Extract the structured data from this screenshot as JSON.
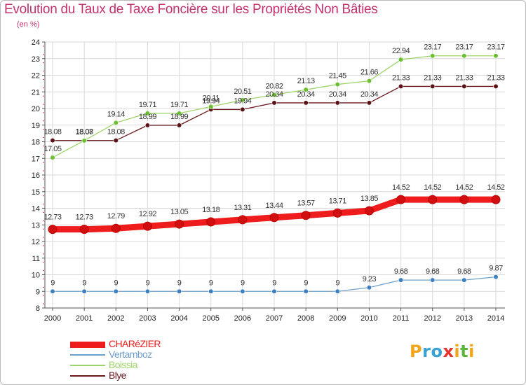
{
  "title": "Evolution du Taux de Taxe Foncière sur les Propriétés Non Bâties",
  "unit_label": "(en %)",
  "logo": {
    "text": "Proxiti",
    "letters": [
      "P",
      "r",
      "o",
      "x",
      "i",
      "t",
      "i"
    ]
  },
  "chart_data": {
    "type": "line",
    "x": [
      "2000",
      "2001",
      "2002",
      "2003",
      "2004",
      "2005",
      "2006",
      "2007",
      "2008",
      "2009",
      "2010",
      "2011",
      "2012",
      "2013",
      "2014"
    ],
    "ylim": [
      8,
      24
    ],
    "yticks": [
      "8",
      "9",
      "10",
      "11",
      "12",
      "13",
      "14",
      "15",
      "16",
      "17",
      "18",
      "19",
      "20",
      "21",
      "22",
      "23",
      "24"
    ],
    "grid": true,
    "legend_position": "bottom-left",
    "series": [
      {
        "name": "Blye",
        "color": "#6b1a1f",
        "marker_color": "#5a1418",
        "width": 1.3,
        "values": [
          18.08,
          18.08,
          18.08,
          18.99,
          18.99,
          19.94,
          19.94,
          20.34,
          20.34,
          20.34,
          20.34,
          21.33,
          21.33,
          21.33,
          21.33
        ],
        "labels": [
          "18.08",
          "18.08",
          "18.08",
          "18.99",
          "18.99",
          "19.94",
          "19.94",
          "20.34",
          "20.34",
          "20.34",
          "20.34",
          "21.33",
          "21.33",
          "21.33",
          "21.33"
        ]
      },
      {
        "name": "Boissia",
        "color": "#9ed46a",
        "marker_color": "#6abf2e",
        "width": 1.3,
        "values": [
          17.05,
          18.07,
          19.14,
          19.71,
          19.71,
          20.11,
          20.51,
          20.82,
          21.13,
          21.45,
          21.66,
          22.94,
          23.17,
          23.17,
          23.17
        ],
        "labels": [
          "17.05",
          "18.07",
          "19.14",
          "19.71",
          "19.71",
          "20.11",
          "20.51",
          "20.82",
          "21.13",
          "21.45",
          "21.66",
          "22.94",
          "23.17",
          "23.17",
          "23.17"
        ]
      },
      {
        "name": "Vertamboz",
        "color": "#6f9fcb",
        "marker_color": "#3d7fbf",
        "width": 1.3,
        "values": [
          9,
          9,
          9,
          9,
          9,
          9,
          9,
          9,
          9,
          9,
          9.23,
          9.68,
          9.68,
          9.68,
          9.87
        ],
        "labels": [
          "9",
          "9",
          "9",
          "9",
          "9",
          "9",
          "9",
          "9",
          "9",
          "9",
          "9.23",
          "9.68",
          "9.68",
          "9.68",
          "9.87"
        ]
      },
      {
        "name": "CHARéZIER",
        "color": "#ee1c1c",
        "marker_color": "#d01010",
        "width": 9,
        "values": [
          12.73,
          12.73,
          12.79,
          12.92,
          13.05,
          13.18,
          13.31,
          13.44,
          13.57,
          13.71,
          13.85,
          14.52,
          14.52,
          14.52,
          14.52
        ],
        "labels": [
          "12.73",
          "12.73",
          "12.79",
          "12.92",
          "13.05",
          "13.18",
          "13.31",
          "13.44",
          "13.57",
          "13.71",
          "13.85",
          "14.52",
          "14.52",
          "14.52",
          "14.52"
        ]
      }
    ]
  },
  "legend": [
    {
      "name": "CHARéZIER",
      "color": "#ee1c1c",
      "swatch_height": 9
    },
    {
      "name": "Vertamboz",
      "color": "#6f9fcb",
      "swatch_height": 2
    },
    {
      "name": "Boissia",
      "color": "#9ed46a",
      "swatch_height": 2
    },
    {
      "name": "Blye",
      "color": "#6b1a1f",
      "swatch_height": 2
    }
  ]
}
